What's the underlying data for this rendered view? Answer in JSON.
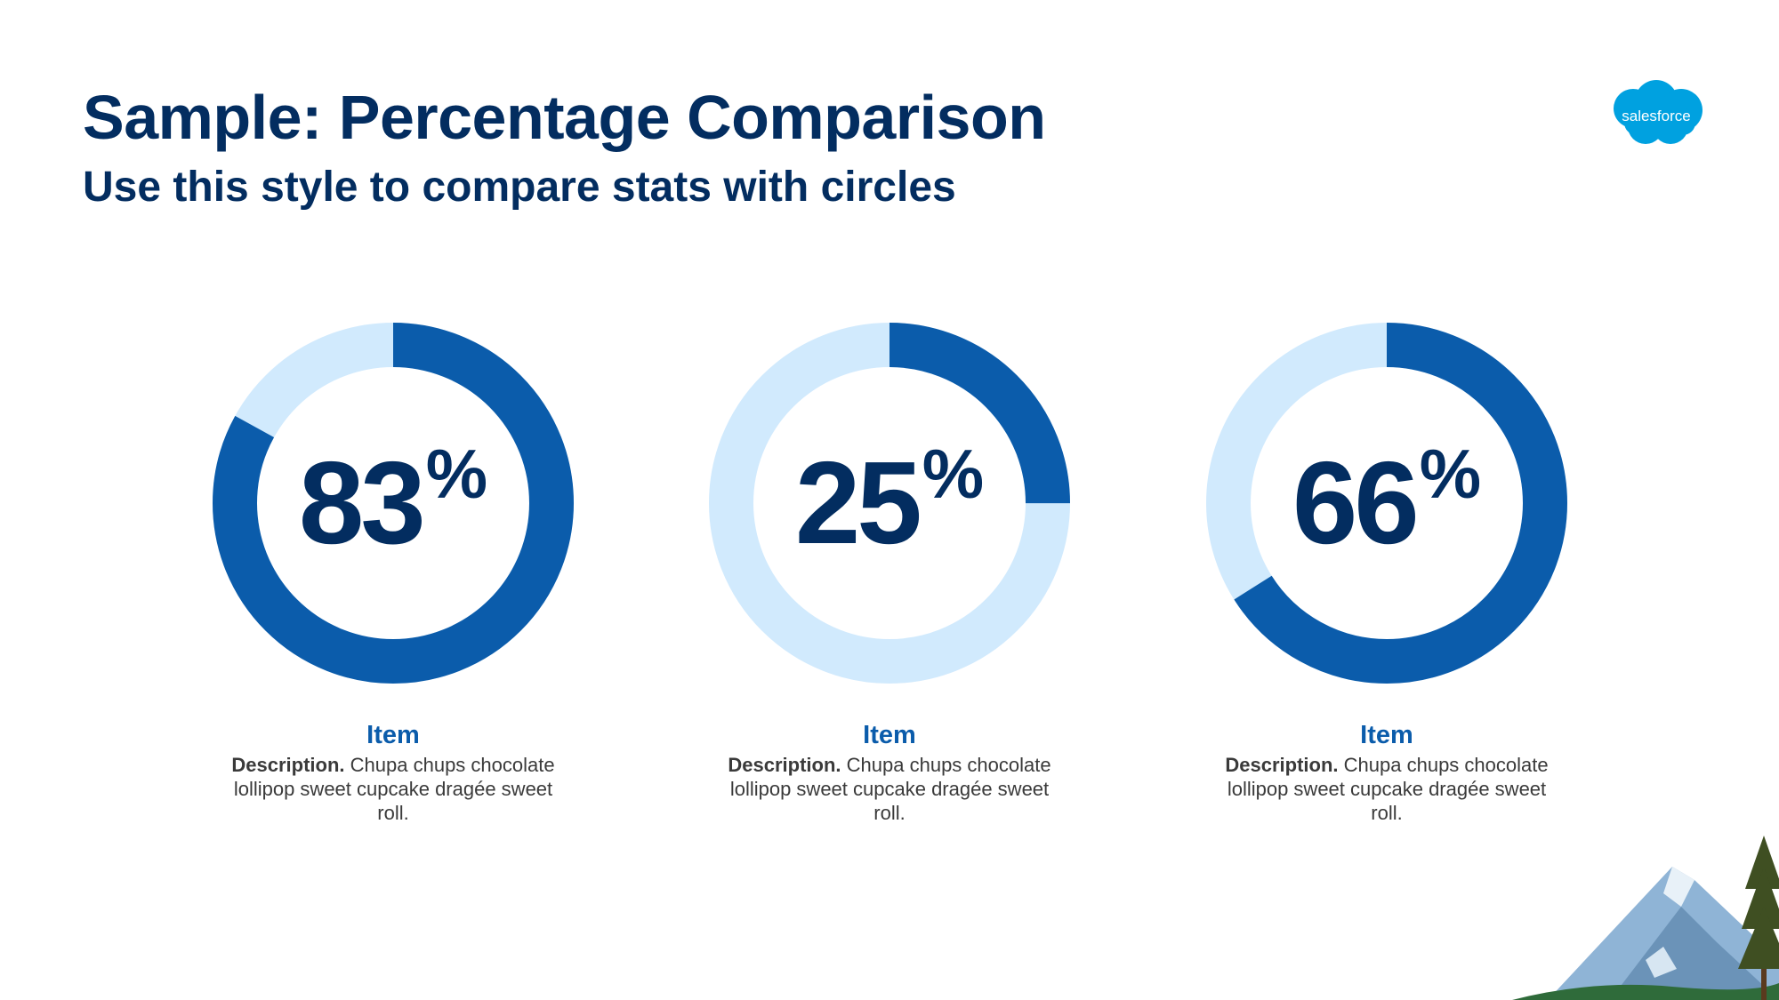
{
  "header": {
    "title": "Sample: Percentage Comparison",
    "subtitle": "Use this style to compare stats with circles"
  },
  "logo": {
    "text": "salesforce",
    "icon": "salesforce-cloud-logo",
    "color": "#00a1e0"
  },
  "colors": {
    "ring_fill": "#0b5cab",
    "ring_track": "#d1eafd",
    "text_dark": "#032d60",
    "item_blue": "#0b5cab"
  },
  "stats": [
    {
      "value": "83",
      "unit": "%",
      "label": "Item",
      "desc_bold": "Description.",
      "desc_text": "Chupa chups chocolate lollipop sweet cupcake dragée sweet roll."
    },
    {
      "value": "25",
      "unit": "%",
      "label": "Item",
      "desc_bold": "Description.",
      "desc_text": "Chupa chups chocolate lollipop sweet cupcake dragée sweet roll."
    },
    {
      "value": "66",
      "unit": "%",
      "label": "Item",
      "desc_bold": "Description.",
      "desc_text": "Chupa chups chocolate lollipop sweet cupcake dragée sweet roll."
    }
  ],
  "chart_data": {
    "type": "pie",
    "style": "donut",
    "series": [
      {
        "name": "Item",
        "value": 83
      },
      {
        "name": "Item",
        "value": 25
      },
      {
        "name": "Item",
        "value": 66
      }
    ],
    "max": 100,
    "unit": "%"
  },
  "decoration": {
    "icon": "mountain-pine-scenery"
  }
}
